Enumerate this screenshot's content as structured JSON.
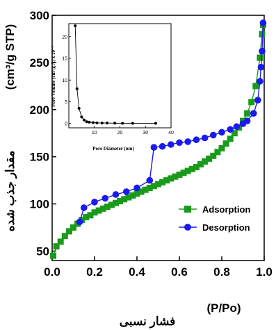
{
  "chart_data": {
    "type": "line",
    "title": "",
    "xlabel": "(P/Po)",
    "xlabel_fa": "فشار نسبی",
    "ylabel": "(cm³/g STP)",
    "ylabel_fa": "مقدار جذب شده",
    "xlim": [
      0,
      1.0
    ],
    "ylim": [
      40,
      300
    ],
    "xticks": [
      "0.0",
      "0.2",
      "0.4",
      "0.6",
      "0.8",
      "1.0"
    ],
    "yticks": [
      "50",
      "100",
      "150",
      "200",
      "250",
      "300"
    ],
    "legend_position": "right-middle",
    "series": [
      {
        "name": "Adsorption",
        "color": "#1a9a1a",
        "marker": "square",
        "points": [
          [
            0.005,
            45
          ],
          [
            0.02,
            55
          ],
          [
            0.04,
            60
          ],
          [
            0.06,
            66
          ],
          [
            0.08,
            71
          ],
          [
            0.1,
            75
          ],
          [
            0.12,
            79
          ],
          [
            0.14,
            83
          ],
          [
            0.16,
            86
          ],
          [
            0.18,
            88
          ],
          [
            0.2,
            91
          ],
          [
            0.22,
            93
          ],
          [
            0.24,
            95
          ],
          [
            0.26,
            97
          ],
          [
            0.28,
            99
          ],
          [
            0.3,
            101
          ],
          [
            0.32,
            103
          ],
          [
            0.34,
            105
          ],
          [
            0.36,
            107
          ],
          [
            0.38,
            109
          ],
          [
            0.4,
            111
          ],
          [
            0.42,
            113
          ],
          [
            0.44,
            115
          ],
          [
            0.46,
            117
          ],
          [
            0.48,
            119
          ],
          [
            0.5,
            121
          ],
          [
            0.52,
            123
          ],
          [
            0.54,
            125
          ],
          [
            0.56,
            127
          ],
          [
            0.58,
            129
          ],
          [
            0.6,
            131
          ],
          [
            0.62,
            133
          ],
          [
            0.64,
            135
          ],
          [
            0.66,
            137
          ],
          [
            0.68,
            139
          ],
          [
            0.7,
            142
          ],
          [
            0.72,
            145
          ],
          [
            0.74,
            148
          ],
          [
            0.76,
            151
          ],
          [
            0.78,
            155
          ],
          [
            0.8,
            159
          ],
          [
            0.82,
            164
          ],
          [
            0.84,
            169
          ],
          [
            0.86,
            175
          ],
          [
            0.88,
            181
          ],
          [
            0.9,
            188
          ],
          [
            0.92,
            196
          ],
          [
            0.94,
            208
          ],
          [
            0.96,
            225
          ],
          [
            0.98,
            255
          ],
          [
            0.99,
            280
          ],
          [
            0.995,
            290
          ]
        ]
      },
      {
        "name": "Desorption",
        "color": "#1a1aee",
        "marker": "circle",
        "points": [
          [
            0.995,
            292
          ],
          [
            0.99,
            262
          ],
          [
            0.985,
            245
          ],
          [
            0.98,
            230
          ],
          [
            0.97,
            210
          ],
          [
            0.95,
            196
          ],
          [
            0.92,
            188
          ],
          [
            0.9,
            185
          ],
          [
            0.87,
            182
          ],
          [
            0.84,
            179
          ],
          [
            0.8,
            176
          ],
          [
            0.76,
            173
          ],
          [
            0.72,
            170
          ],
          [
            0.68,
            168
          ],
          [
            0.64,
            166
          ],
          [
            0.6,
            165
          ],
          [
            0.56,
            163
          ],
          [
            0.52,
            161
          ],
          [
            0.48,
            160
          ],
          [
            0.46,
            125
          ],
          [
            0.4,
            117
          ],
          [
            0.35,
            113
          ],
          [
            0.3,
            110
          ],
          [
            0.25,
            106
          ],
          [
            0.2,
            102
          ],
          [
            0.15,
            96
          ],
          [
            0.13,
            81
          ]
        ]
      }
    ],
    "inset": {
      "type": "line",
      "xlabel": "Pore Diameter (nm)",
      "ylabel": "Pore Volume (cm³/g Å) x 10⁻³",
      "xlim": [
        0,
        40
      ],
      "ylim": [
        -1,
        23
      ],
      "xticks": [
        "10",
        "20",
        "30",
        "40"
      ],
      "yticks": [
        "0",
        "5",
        "10",
        "15",
        "20"
      ],
      "series": [
        {
          "name": "",
          "color": "#000000",
          "marker": "circle",
          "points": [
            [
              2.5,
              22.5
            ],
            [
              3.2,
              8.0
            ],
            [
              4.0,
              3.5
            ],
            [
              5.0,
              1.5
            ],
            [
              6.0,
              0.8
            ],
            [
              7.0,
              0.4
            ],
            [
              8.0,
              0.3
            ],
            [
              9.5,
              0.2
            ],
            [
              11.0,
              0.15
            ],
            [
              13.0,
              0.1
            ],
            [
              15.0,
              0.1
            ],
            [
              18.0,
              0.08
            ],
            [
              21.0,
              0.05
            ],
            [
              25.0,
              0.05
            ],
            [
              34.0,
              0.05
            ]
          ]
        }
      ]
    }
  }
}
